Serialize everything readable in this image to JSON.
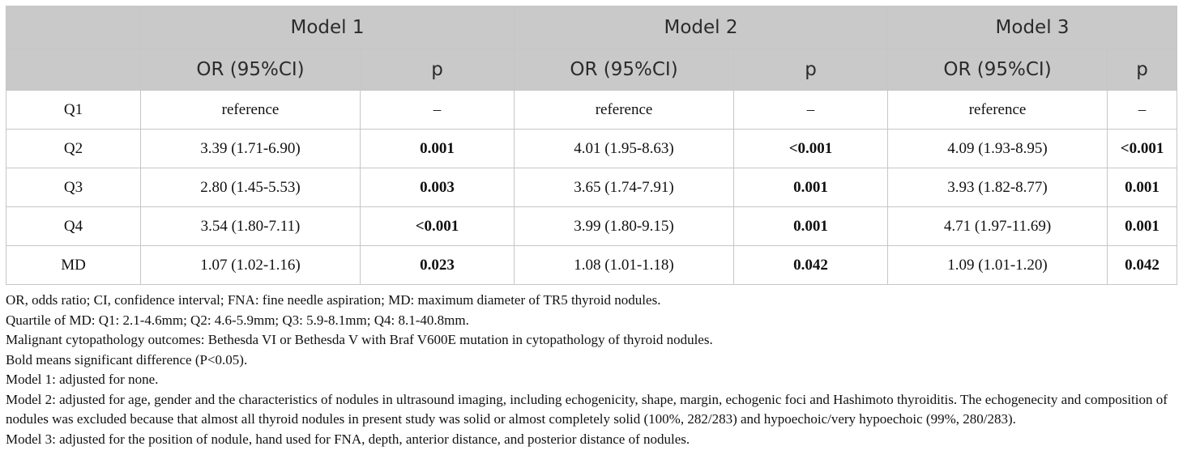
{
  "table": {
    "models": [
      "Model 1",
      "Model 2",
      "Model 3"
    ],
    "sub_headers": {
      "or": "OR (95%CI)",
      "p": "p"
    },
    "rows": [
      {
        "label": "Q1",
        "cells": [
          {
            "or": "reference",
            "p": "–",
            "p_bold": false
          },
          {
            "or": "reference",
            "p": "–",
            "p_bold": false
          },
          {
            "or": "reference",
            "p": "–",
            "p_bold": false
          }
        ]
      },
      {
        "label": "Q2",
        "cells": [
          {
            "or": "3.39 (1.71-6.90)",
            "p": "0.001",
            "p_bold": true
          },
          {
            "or": "4.01 (1.95-8.63)",
            "p": "<0.001",
            "p_bold": true
          },
          {
            "or": "4.09 (1.93-8.95)",
            "p": "<0.001",
            "p_bold": true
          }
        ]
      },
      {
        "label": "Q3",
        "cells": [
          {
            "or": "2.80 (1.45-5.53)",
            "p": "0.003",
            "p_bold": true
          },
          {
            "or": "3.65 (1.74-7.91)",
            "p": "0.001",
            "p_bold": true
          },
          {
            "or": "3.93 (1.82-8.77)",
            "p": "0.001",
            "p_bold": true
          }
        ]
      },
      {
        "label": "Q4",
        "cells": [
          {
            "or": "3.54 (1.80-7.11)",
            "p": "<0.001",
            "p_bold": true
          },
          {
            "or": "3.99 (1.80-9.15)",
            "p": "0.001",
            "p_bold": true
          },
          {
            "or": "4.71 (1.97-11.69)",
            "p": "0.001",
            "p_bold": true
          }
        ]
      },
      {
        "label": "MD",
        "cells": [
          {
            "or": "1.07 (1.02-1.16)",
            "p": "0.023",
            "p_bold": true
          },
          {
            "or": "1.08 (1.01-1.18)",
            "p": "0.042",
            "p_bold": true
          },
          {
            "or": "1.09 (1.01-1.20)",
            "p": "0.042",
            "p_bold": true
          }
        ]
      }
    ]
  },
  "footnotes": [
    "OR, odds ratio; CI, confidence interval; FNA: fine needle aspiration; MD: maximum diameter of TR5 thyroid nodules.",
    "Quartile of MD: Q1: 2.1-4.6mm; Q2: 4.6-5.9mm; Q3: 5.9-8.1mm; Q4: 8.1-40.8mm.",
    "Malignant cytopathology outcomes: Bethesda VI or Bethesda V with Braf V600E mutation in cytopathology of thyroid nodules.",
    "Bold means significant difference (P<0.05).",
    "Model 1: adjusted for none.",
    "Model 2: adjusted for age, gender and the characteristics of nodules in ultrasound imaging, including echogenicity, shape, margin, echogenic foci and Hashimoto thyroiditis. The echogenecity and composition of nodules was excluded because that almost all thyroid nodules in present study was solid or almost completely solid (100%, 282/283) and hypoechoic/very hypoechoic (99%, 280/283).",
    "Model 3: adjusted for the position of nodule, hand used for FNA, depth, anterior distance, and posterior distance of nodules."
  ]
}
